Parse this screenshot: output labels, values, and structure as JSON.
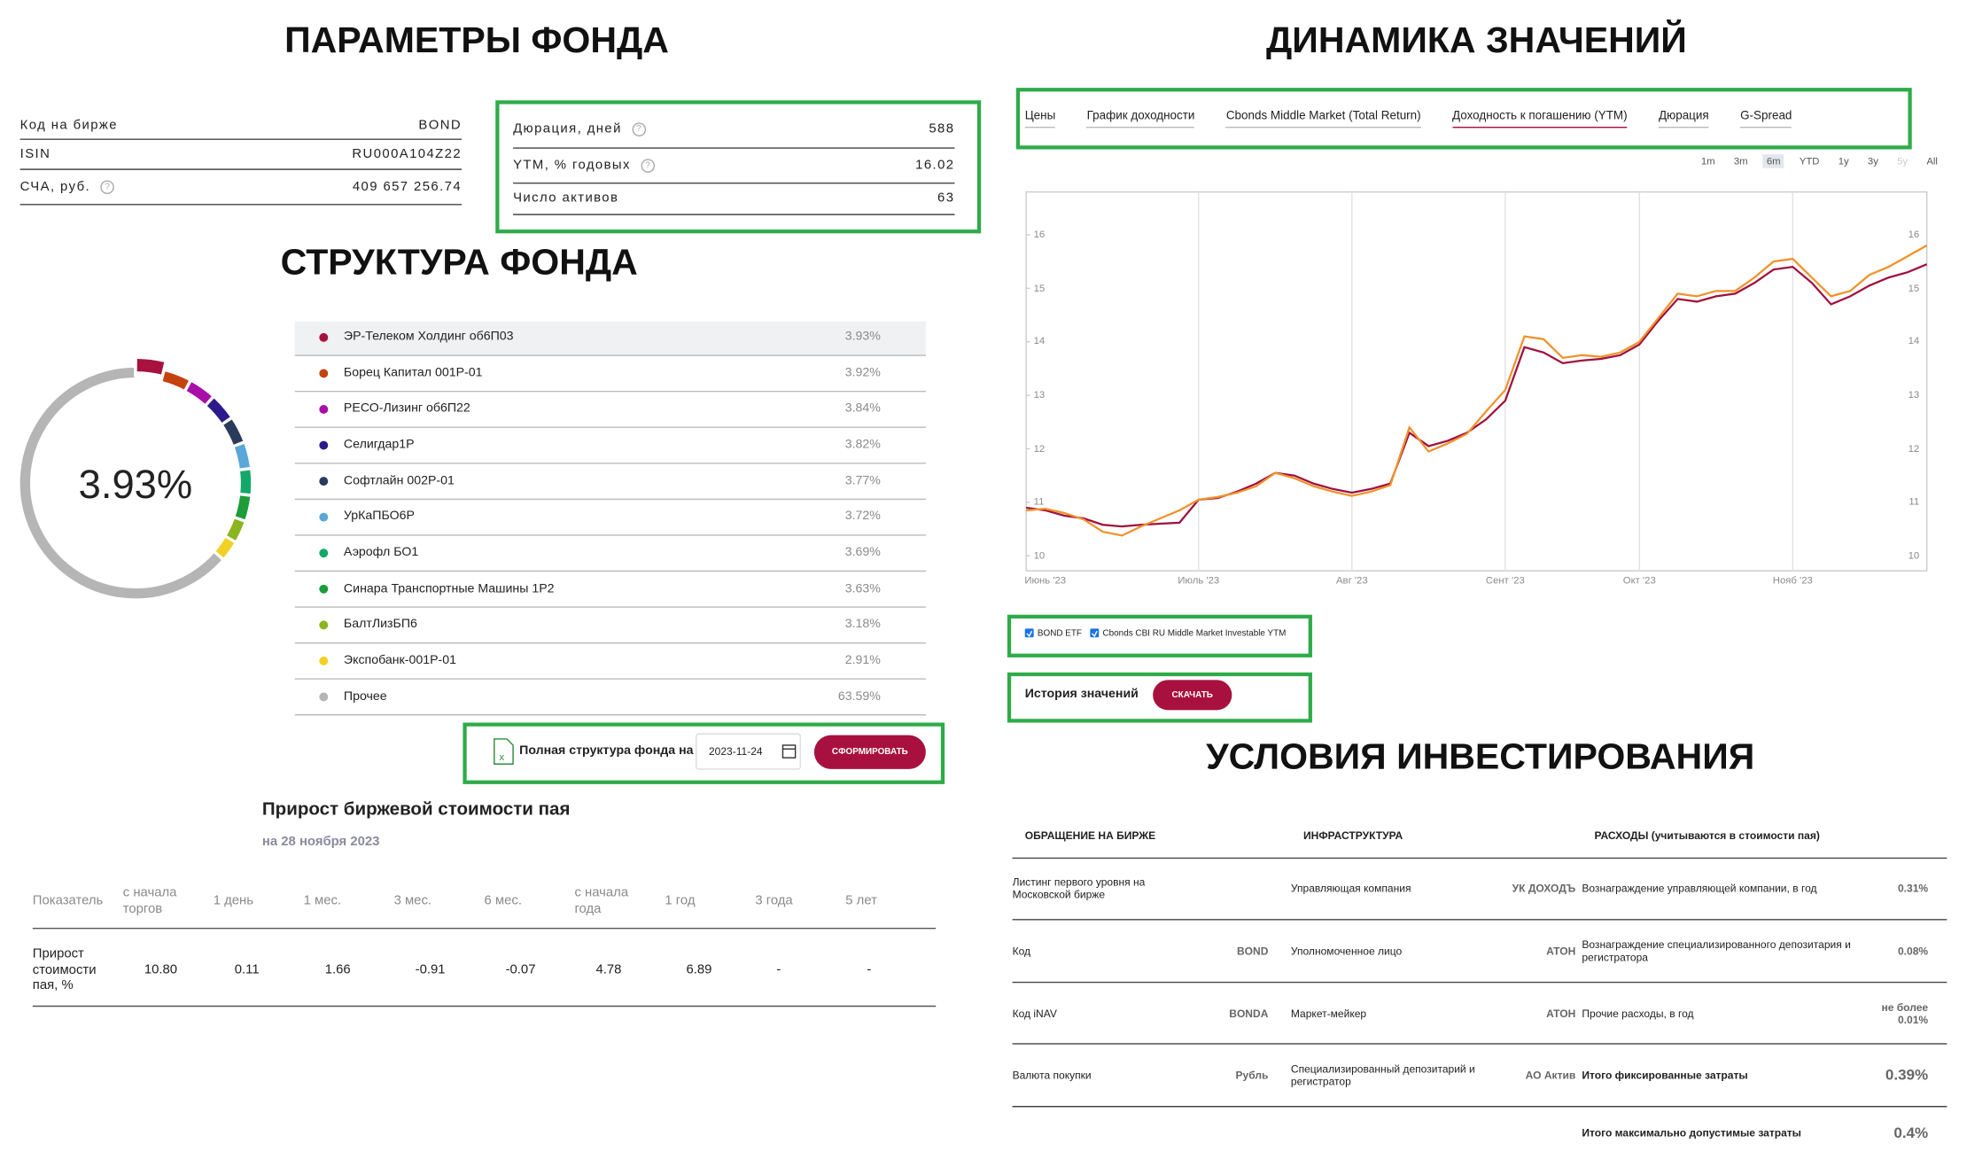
{
  "params": {
    "title": "ПАРАМЕТРЫ ФОНДА",
    "rows": [
      [
        "Код на бирже",
        "BOND"
      ],
      [
        "ISIN",
        "RU000A104Z22"
      ],
      [
        "СЧА, руб.",
        "409 657 256.74"
      ]
    ],
    "key_rows": [
      [
        "Дюрация, дней",
        "588"
      ],
      [
        "YTM, % годовых",
        "16.02"
      ],
      [
        "Число активов",
        "63"
      ]
    ]
  },
  "structure": {
    "title": "СТРУКТУРА ФОНДА",
    "export": {
      "label": "Полная структура фонда на",
      "date": "2023-11-24",
      "button": "СФОРМИРОВАТЬ"
    }
  },
  "growth": {
    "title": "Прирост биржевой стоимости пая",
    "subtitle": "на 28 ноября 2023",
    "columns": [
      "Показатель",
      "с начала торгов",
      "1 день",
      "1 мес.",
      "3 мес.",
      "6 мес.",
      "с начала года",
      "1 год",
      "3 года",
      "5 лет"
    ],
    "rows": [
      [
        "Прирост стоимости пая, %",
        "10.80",
        "0.11",
        "1.66",
        "-0.91",
        "-0.07",
        "4.78",
        "6.89",
        "-",
        "-"
      ]
    ]
  },
  "dynamics": {
    "title": "ДИНАМИКА ЗНАЧЕНИЙ",
    "tabs": [
      "Цены",
      "График доходности",
      "Cbonds Middle Market (Total Return)",
      "Доходность к погашению (YTM)",
      "Дюрация",
      "G-Spread"
    ],
    "ranges": [
      "1m",
      "3m",
      "6m",
      "YTD",
      "1y",
      "3y",
      "5y",
      "All"
    ],
    "history": {
      "label": "История значений",
      "button": "СКАЧАТЬ"
    }
  },
  "conditions": {
    "title": "УСЛОВИЯ ИНВЕСТИРОВАНИЯ",
    "headers": [
      "ОБРАЩЕНИЕ НА БИРЖЕ",
      "ИНФРАСТРУКТУРА",
      "РАСХОДЫ (учитываются в стоимости пая)"
    ],
    "rows": [
      [
        "Листинг первого уровня на Московской бирже",
        null,
        "Управляющая компания",
        "УК ДОХОДЪ",
        "Вознаграждение управляющей компании, в год",
        "0.31%"
      ],
      [
        "Код",
        "BOND",
        "Уполномоченное лицо",
        "АТОН",
        "Вознаграждение специализированного депозитария и регистратора",
        "0.08%"
      ],
      [
        "Код iNAV",
        "BONDA",
        "Маркет-мейкер",
        "АТОН",
        "Прочие расходы, в год",
        "не более 0.01%"
      ],
      [
        "Валюта покупки",
        "Рубль",
        "Специализированный депозитарий и регистратор",
        "АО Актив",
        "Итого фиксированные затраты",
        "0.39%"
      ],
      [
        null,
        null,
        null,
        null,
        "Итого максимально допустимые затраты",
        "0.4%"
      ]
    ]
  },
  "chart_data": [
    {
      "type": "donut",
      "categories": [
        "ЭР-Телеком Холдинг об6П03",
        "Борец Капитал 001P-01",
        "РЕСО-Лизинг об6П22",
        "Селигдар1Р",
        "Софтлайн 002Р-01",
        "УрКаПБО6Р",
        "Аэрофл БО1",
        "Синара Транспортные Машины 1Р2",
        "БалтЛизБП6",
        "Экспобанк-001Р-01",
        "Прочее"
      ],
      "values": [
        3.93,
        3.92,
        3.84,
        3.82,
        3.77,
        3.72,
        3.69,
        3.63,
        3.18,
        2.91,
        63.59
      ],
      "value_labels": [
        "3.93%",
        "3.92%",
        "3.84%",
        "3.82%",
        "3.77%",
        "3.72%",
        "3.69%",
        "3.63%",
        "3.18%",
        "2.91%",
        "63.59%"
      ],
      "colors": [
        "#a8123e",
        "#c4420e",
        "#a80ea8",
        "#2c1a8c",
        "#2a3a5c",
        "#5aa7d9",
        "#12a86a",
        "#1e9c3a",
        "#8ab51e",
        "#f2d024",
        "#b5b5b5"
      ]
    },
    {
      "type": "line",
      "categories": [
        null,
        "Июнь '23",
        null,
        null,
        null,
        null,
        null,
        null,
        null,
        "Июль '23",
        null,
        null,
        null,
        null,
        null,
        null,
        null,
        "Авг '23",
        null,
        null,
        null,
        null,
        null,
        null,
        null,
        "Сент '23",
        null,
        null,
        null,
        null,
        null,
        null,
        "Окт '23",
        null,
        null,
        null,
        null,
        null,
        null,
        null,
        "Нояб '23",
        null,
        null,
        null,
        null,
        null,
        null,
        null
      ],
      "ylim": [
        9.72,
        16.8
      ],
      "yticks": [
        10,
        11,
        12,
        13,
        14,
        15,
        16
      ],
      "series": [
        {
          "name": "BOND ETF",
          "color": "#a0103d",
          "values": [
            10.9,
            10.85,
            10.75,
            10.7,
            10.58,
            10.55,
            10.58,
            10.6,
            10.62,
            11.05,
            11.08,
            11.2,
            11.35,
            11.55,
            11.5,
            11.35,
            11.25,
            11.18,
            11.25,
            11.35,
            12.3,
            12.05,
            12.15,
            12.3,
            12.55,
            12.9,
            13.9,
            13.8,
            13.6,
            13.65,
            13.68,
            13.75,
            13.95,
            14.4,
            14.8,
            14.75,
            14.85,
            14.9,
            15.1,
            15.35,
            15.4,
            15.1,
            14.7,
            14.85,
            15.05,
            15.2,
            15.3,
            15.45
          ]
        },
        {
          "name": "Cbonds CBI RU Middle Market Investable YTM",
          "color": "#f0922b",
          "values": [
            10.85,
            10.88,
            10.8,
            10.68,
            10.45,
            10.38,
            10.55,
            10.7,
            10.85,
            11.05,
            11.1,
            11.18,
            11.3,
            11.55,
            11.45,
            11.3,
            11.2,
            11.12,
            11.2,
            11.32,
            12.4,
            11.95,
            12.1,
            12.28,
            12.7,
            13.1,
            14.1,
            14.05,
            13.7,
            13.75,
            13.72,
            13.8,
            14.0,
            14.45,
            14.9,
            14.85,
            14.95,
            14.95,
            15.2,
            15.5,
            15.55,
            15.2,
            14.85,
            14.95,
            15.25,
            15.4,
            15.6,
            15.8
          ]
        }
      ]
    }
  ]
}
